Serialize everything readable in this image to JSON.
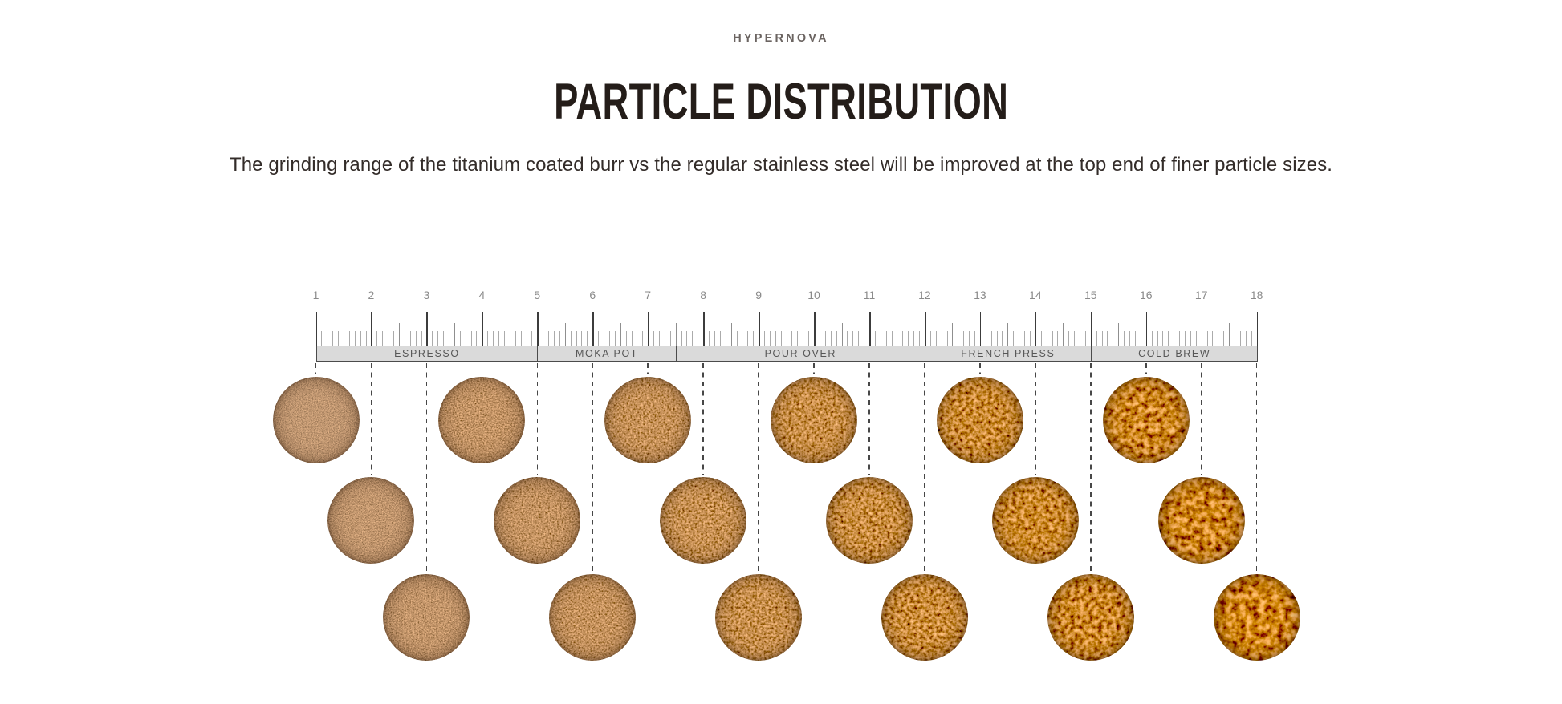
{
  "header": {
    "brand": "HYPERNOVA",
    "title": "PARTICLE DISTRIBUTION",
    "subtitle": "The grinding range of the titanium coated burr vs the regular stainless steel will be improved at the top end of finer particle sizes."
  },
  "ruler": {
    "min": 1,
    "max": 18,
    "tick_labels": [
      "1",
      "2",
      "3",
      "4",
      "5",
      "6",
      "7",
      "8",
      "9",
      "10",
      "11",
      "12",
      "13",
      "14",
      "15",
      "16",
      "17",
      "18"
    ],
    "minor_divisions_per_unit": 10
  },
  "zones": [
    {
      "label": "ESPRESSO",
      "start": 1,
      "end": 5
    },
    {
      "label": "MOKA POT",
      "start": 5,
      "end": 7.5
    },
    {
      "label": "POUR OVER",
      "start": 7.5,
      "end": 12
    },
    {
      "label": "FRENCH PRESS",
      "start": 12,
      "end": 15
    },
    {
      "label": "COLD BREW",
      "start": 15,
      "end": 18
    }
  ],
  "samples": {
    "settings": [
      1,
      2,
      3,
      4,
      5,
      6,
      7,
      8,
      9,
      10,
      11,
      12,
      13,
      14,
      15,
      16,
      17,
      18
    ],
    "texture": "ground-coffee, finer at low settings, coarser at high settings"
  },
  "colors": {
    "band_fill": "#dadada",
    "band_border": "#4b4b4b",
    "tick_major": "#3c3c3c",
    "tick_half": "#8f8f8f",
    "tick_minor": "#ababab",
    "dash_line": "#474747",
    "number_text": "#8a8a8a",
    "zone_text": "#575757",
    "brand_text": "#6b6461",
    "title_text": "#241d19",
    "subtitle_text": "#332c29",
    "coffee_mid": "#89522e",
    "coffee_dark": "#2e1a0d",
    "coffee_light": "#c89a64"
  }
}
